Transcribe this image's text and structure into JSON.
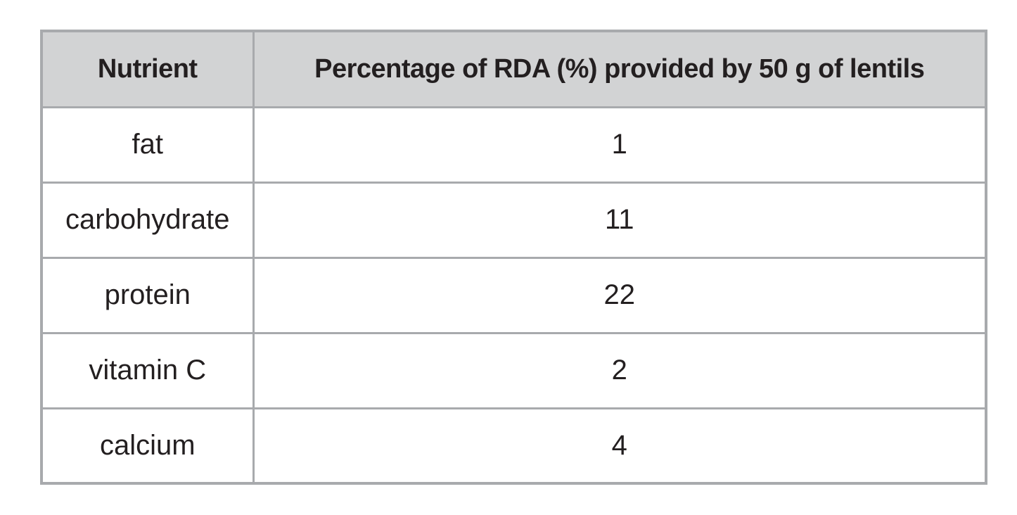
{
  "colors": {
    "header_bg": "#d2d3d4",
    "border": "#a8aaad",
    "text": "#231f20",
    "cell_bg": "#ffffff",
    "page_bg": "#ffffff"
  },
  "chart_data": {
    "type": "table",
    "title": "",
    "columns": [
      "Nutrient",
      "Percentage of RDA (%) provided by 50 g of lentils"
    ],
    "rows": [
      [
        "fat",
        "1"
      ],
      [
        "carbohydrate",
        "11"
      ],
      [
        "protein",
        "22"
      ],
      [
        "vitamin C",
        "2"
      ],
      [
        "calcium",
        "4"
      ]
    ]
  }
}
